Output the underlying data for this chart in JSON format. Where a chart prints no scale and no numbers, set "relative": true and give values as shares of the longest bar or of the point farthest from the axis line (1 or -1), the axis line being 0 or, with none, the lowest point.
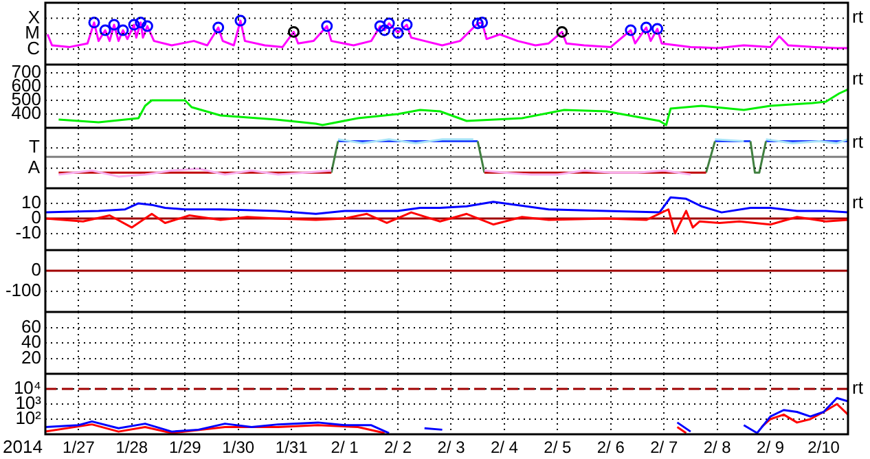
{
  "chart_data": [
    {
      "type": "line",
      "y2label": "rt",
      "grid": true,
      "tick_labels": "y",
      "xlim": [
        "2014-01-26T09:00",
        "2014-02-10T11:00"
      ],
      "xticks": [
        {
          "value": "2014-01-27",
          "label": null
        },
        {
          "value": "2014-01-28",
          "label": null
        },
        {
          "value": "2014-01-29",
          "label": null
        },
        {
          "value": "2014-01-30",
          "label": null
        },
        {
          "value": "2014-01-31",
          "label": null
        },
        {
          "value": "2014-02-01",
          "label": null
        },
        {
          "value": "2014-02-02",
          "label": null
        },
        {
          "value": "2014-02-03",
          "label": null
        },
        {
          "value": "2014-02-04",
          "label": null
        },
        {
          "value": "2014-02-05",
          "label": null
        },
        {
          "value": "2014-02-06",
          "label": null
        },
        {
          "value": "2014-02-07",
          "label": null
        },
        {
          "value": "2014-02-08",
          "label": null
        },
        {
          "value": "2014-02-09",
          "label": null
        },
        {
          "value": "2014-02-10",
          "label": null
        }
      ],
      "relative": true,
      "annotations": [
        "X",
        "M",
        "C"
      ],
      "series": [
        {
          "color": "#ff00ff",
          "x": [
            "2014-01-26T10:00",
            "2014-01-26T12:00",
            "2014-01-26T20:00",
            "2014-01-27T04:00",
            "2014-01-27T07:00",
            "2014-01-27T09:00",
            "2014-01-27T12:00",
            "2014-01-27T14:00",
            "2014-01-27T16:00",
            "2014-01-27T18:00",
            "2014-01-27T20:00",
            "2014-01-27T22:00",
            "2014-01-28T01:00",
            "2014-01-28T02:00",
            "2014-01-28T04:00",
            "2014-01-28T05:00",
            "2014-01-28T07:00",
            "2014-01-28T10:00",
            "2014-01-28T18:00",
            "2014-01-29T04:00",
            "2014-01-29T10:00",
            "2014-01-29T15:00",
            "2014-01-29T17:00",
            "2014-01-29T22:00",
            "2014-01-30T01:00",
            "2014-01-30T03:00",
            "2014-01-30T12:00",
            "2014-01-30T20:00",
            "2014-01-31T01:00",
            "2014-01-31T03:00",
            "2014-01-31T10:00",
            "2014-01-31T16:00",
            "2014-01-31T18:00",
            "2014-02-01T04:00",
            "2014-02-01T12:00",
            "2014-02-01T16:00",
            "2014-02-01T18:00",
            "2014-02-01T20:00",
            "2014-02-02T00:00",
            "2014-02-02T04:00",
            "2014-02-02T06:00",
            "2014-02-02T12:00",
            "2014-02-02T20:00",
            "2014-02-03T04:00",
            "2014-02-03T12:00",
            "2014-02-03T14:00",
            "2014-02-03T16:00",
            "2014-02-03T22:00",
            "2014-02-04T06:00",
            "2014-02-04T14:00",
            "2014-02-04T20:00",
            "2014-02-05T02:00",
            "2014-02-05T04:00",
            "2014-02-05T12:00",
            "2014-02-06T00:00",
            "2014-02-06T09:00",
            "2014-02-06T11:00",
            "2014-02-06T16:00",
            "2014-02-06T18:00",
            "2014-02-06T21:00",
            "2014-02-06T23:00",
            "2014-02-07T12:00",
            "2014-02-08T00:00",
            "2014-02-08T12:00",
            "2014-02-09T00:00",
            "2014-02-09T04:00",
            "2014-02-09T08:00",
            "2014-02-09T20:00",
            "2014-02-10T06:00",
            "2014-02-10T11:00"
          ],
          "values": [
            0.5,
            0.1,
            0.04,
            0.17,
            0.93,
            0.26,
            0.65,
            0.26,
            0.85,
            0.26,
            0.65,
            0.33,
            0.85,
            0.38,
            0.93,
            0.38,
            0.8,
            0.26,
            0.1,
            0.26,
            0.1,
            0.75,
            0.26,
            0.1,
            1,
            0.26,
            0.1,
            0.04,
            0.59,
            0.17,
            0.26,
            0.8,
            0.26,
            0.1,
            0.26,
            0.8,
            0.65,
            0.9,
            0.55,
            0.85,
            0.38,
            0.26,
            0.1,
            0.26,
            0.9,
            0.93,
            0.33,
            0.5,
            0.26,
            0.1,
            0.17,
            0.59,
            0.17,
            0.1,
            0.04,
            0.65,
            0.17,
            0.75,
            0.26,
            0.7,
            0.17,
            0.04,
            0,
            0.1,
            0.04,
            0.43,
            0.1,
            0.04,
            0,
            0
          ]
        },
        {
          "type": "scatter",
          "marker": "circle",
          "color": "#0000ff",
          "x": [
            "2014-01-27T07:00",
            "2014-01-27T12:00",
            "2014-01-27T16:00",
            "2014-01-27T20:00",
            "2014-01-28T01:00",
            "2014-01-28T04:00",
            "2014-01-28T07:00",
            "2014-01-29T15:00",
            "2014-01-30T01:00",
            "2014-01-31T16:00",
            "2014-02-01T16:00",
            "2014-02-01T18:00",
            "2014-02-01T20:00",
            "2014-02-02T00:00",
            "2014-02-02T04:00",
            "2014-02-03T12:00",
            "2014-02-03T14:00",
            "2014-02-06T09:00",
            "2014-02-06T16:00",
            "2014-02-06T21:00"
          ],
          "values": [
            0.93,
            0.65,
            0.85,
            0.65,
            0.85,
            0.93,
            0.8,
            0.75,
            1,
            0.8,
            0.8,
            0.65,
            0.9,
            0.55,
            0.85,
            0.9,
            0.93,
            0.65,
            0.75,
            0.7
          ]
        },
        {
          "type": "scatter",
          "marker": "circle",
          "color": "#000000",
          "x": [
            "2014-01-31T01:00",
            "2014-02-05T02:00"
          ],
          "values": [
            0.59,
            0.59
          ]
        }
      ]
    },
    {
      "type": "line",
      "y2label": "rt",
      "grid": true,
      "tick_labels": "y",
      "xlim": [
        "2014-01-26T09:00",
        "2014-02-10T11:00"
      ],
      "xticks": [
        {
          "value": "2014-01-27",
          "label": null
        },
        {
          "value": "2014-01-28",
          "label": null
        },
        {
          "value": "2014-01-29",
          "label": null
        },
        {
          "value": "2014-01-30",
          "label": null
        },
        {
          "value": "2014-01-31",
          "label": null
        },
        {
          "value": "2014-02-01",
          "label": null
        },
        {
          "value": "2014-02-02",
          "label": null
        },
        {
          "value": "2014-02-03",
          "label": null
        },
        {
          "value": "2014-02-04",
          "label": null
        },
        {
          "value": "2014-02-05",
          "label": null
        },
        {
          "value": "2014-02-06",
          "label": null
        },
        {
          "value": "2014-02-07",
          "label": null
        },
        {
          "value": "2014-02-08",
          "label": null
        },
        {
          "value": "2014-02-09",
          "label": null
        },
        {
          "value": "2014-02-10",
          "label": null
        }
      ],
      "ylim": [
        300,
        760
      ],
      "yticks": [
        400,
        500,
        600,
        700
      ],
      "series": [
        {
          "color": "#00ee00",
          "x": [
            "2014-01-26T15:00",
            "2014-01-27T09:00",
            "2014-01-28T03:00",
            "2014-01-28T06:00",
            "2014-01-28T09:00",
            "2014-01-29T00:00",
            "2014-01-29T03:00",
            "2014-01-29T16:00",
            "2014-01-30T17:00",
            "2014-01-31T11:00",
            "2014-01-31T14:00",
            "2014-02-01T06:00",
            "2014-02-02T00:00",
            "2014-02-02T10:00",
            "2014-02-02T19:00",
            "2014-02-03T07:00",
            "2014-02-04T08:00",
            "2014-02-05T03:00",
            "2014-02-05T22:00",
            "2014-02-06T22:00",
            "2014-02-07T01:00",
            "2014-02-07T03:00",
            "2014-02-07T17:00",
            "2014-02-08T12:00",
            "2014-02-09T00:00",
            "2014-02-09T19:00",
            "2014-02-10T01:00",
            "2014-02-10T07:00",
            "2014-02-10T11:00"
          ],
          "values": [
            360,
            340,
            370,
            460,
            500,
            500,
            450,
            390,
            360,
            330,
            320,
            370,
            400,
            430,
            420,
            350,
            370,
            430,
            420,
            350,
            320,
            440,
            460,
            430,
            460,
            480,
            490,
            550,
            580
          ]
        }
      ]
    },
    {
      "type": "line",
      "y2label": "rt",
      "grid": true,
      "tick_labels": "y",
      "xlim": [
        "2014-01-26T09:00",
        "2014-02-10T11:00"
      ],
      "xticks": [
        {
          "value": "2014-01-27",
          "label": null
        },
        {
          "value": "2014-01-28",
          "label": null
        },
        {
          "value": "2014-01-29",
          "label": null
        },
        {
          "value": "2014-01-30",
          "label": null
        },
        {
          "value": "2014-01-31",
          "label": null
        },
        {
          "value": "2014-02-01",
          "label": null
        },
        {
          "value": "2014-02-02",
          "label": null
        },
        {
          "value": "2014-02-03",
          "label": null
        },
        {
          "value": "2014-02-04",
          "label": null
        },
        {
          "value": "2014-02-05",
          "label": null
        },
        {
          "value": "2014-02-06",
          "label": null
        },
        {
          "value": "2014-02-07",
          "label": null
        },
        {
          "value": "2014-02-08",
          "label": null
        },
        {
          "value": "2014-02-09",
          "label": null
        },
        {
          "value": "2014-02-10",
          "label": null
        }
      ],
      "relative": true,
      "annotations": [
        "T",
        "A"
      ],
      "ref_lines": [
        {
          "axis": "y",
          "value": 0,
          "color": "#808080"
        }
      ],
      "series": [
        {
          "color": "#f8b0f0",
          "x": [
            "2014-01-26T15:00",
            "2014-01-27T06:00",
            "2014-01-27T18:00",
            "2014-01-28T06:00",
            "2014-01-28T18:00",
            "2014-01-29T06:00",
            "2014-01-29T18:00",
            "2014-01-30T06:00",
            "2014-01-30T18:00",
            "2014-01-31T06:00",
            "2014-01-31T18:00",
            "2014-02-02T00:00",
            "2014-02-03T15:00",
            "2014-02-04T00:00",
            "2014-02-04T12:00",
            "2014-02-05T00:00",
            "2014-02-05T12:00",
            "2014-02-06T00:00",
            "2014-02-06T12:00",
            "2014-02-07T00:00",
            "2014-02-07T12:00"
          ],
          "values": [
            -0.9,
            -0.7,
            -1,
            -0.9,
            -0.7,
            -0.6,
            -0.9,
            -0.7,
            -0.9,
            -0.8,
            -0.7,
            null,
            -0.7,
            -0.8,
            -0.9,
            -0.9,
            -0.7,
            -0.8,
            -0.8,
            -0.7,
            -0.9
          ]
        },
        {
          "color": "#a8e4f8",
          "x": [
            "2014-01-31T21:00",
            "2014-02-01T08:00",
            "2014-02-01T20:00",
            "2014-02-02T08:00",
            "2014-02-02T20:00",
            "2014-02-03T10:00",
            "2014-02-05T00:00",
            "2014-02-07T23:00",
            "2014-02-08T12:00",
            "2014-02-08T18:00",
            "2014-02-08T22:00",
            "2014-02-09T10:00",
            "2014-02-09T22:00",
            "2014-02-10T06:00",
            "2014-02-10T11:00"
          ],
          "values": [
            0.9,
            0.7,
            0.9,
            0.7,
            0.9,
            0.9,
            null,
            0.9,
            0.8,
            null,
            0.9,
            0.7,
            0.8,
            0.7,
            0.9
          ]
        },
        {
          "color": "#c00000",
          "x": [
            "2014-01-26T15:00",
            "2014-01-31T18:00",
            "2014-02-02T00:00",
            "2014-02-03T15:00",
            "2014-02-07T19:00"
          ],
          "values": [
            -0.8,
            -0.8,
            null,
            -0.8,
            -0.8
          ]
        },
        {
          "color": "#408040",
          "x": [
            "2014-01-31T18:00",
            "2014-01-31T21:00",
            "2014-02-02T00:00",
            "2014-02-03T12:00",
            "2014-02-03T15:00",
            "2014-02-05T00:00",
            "2014-02-07T19:00",
            "2014-02-07T23:00",
            "2014-02-08T02:00",
            "2014-02-08T15:00",
            "2014-02-08T17:00",
            "2014-02-08T19:00",
            "2014-02-08T22:00"
          ],
          "values": [
            -0.8,
            0.8,
            null,
            0.8,
            -0.8,
            null,
            -0.8,
            0.8,
            null,
            0.8,
            -0.8,
            -0.8,
            0.8
          ]
        },
        {
          "color": "#2040ff",
          "x": [
            "2014-01-31T21:00",
            "2014-02-03T12:00",
            "2014-02-05T00:00",
            "2014-02-07T23:00",
            "2014-02-08T15:00",
            "2014-02-08T18:00",
            "2014-02-08T22:00",
            "2014-02-10T11:00"
          ],
          "values": [
            0.8,
            0.8,
            null,
            0.8,
            0.8,
            null,
            0.8,
            0.8
          ]
        }
      ]
    },
    {
      "type": "line",
      "y2label": "rt",
      "grid": true,
      "tick_labels": "y",
      "xlim": [
        "2014-01-26T09:00",
        "2014-02-10T11:00"
      ],
      "xticks": [
        {
          "value": "2014-01-27",
          "label": null
        },
        {
          "value": "2014-01-28",
          "label": null
        },
        {
          "value": "2014-01-29",
          "label": null
        },
        {
          "value": "2014-01-30",
          "label": null
        },
        {
          "value": "2014-01-31",
          "label": null
        },
        {
          "value": "2014-02-01",
          "label": null
        },
        {
          "value": "2014-02-02",
          "label": null
        },
        {
          "value": "2014-02-03",
          "label": null
        },
        {
          "value": "2014-02-04",
          "label": null
        },
        {
          "value": "2014-02-05",
          "label": null
        },
        {
          "value": "2014-02-06",
          "label": null
        },
        {
          "value": "2014-02-07",
          "label": null
        },
        {
          "value": "2014-02-08",
          "label": null
        },
        {
          "value": "2014-02-09",
          "label": null
        },
        {
          "value": "2014-02-10",
          "label": null
        }
      ],
      "ylim": [
        -21,
        20
      ],
      "yticks": [
        10,
        0,
        -10
      ],
      "ref_lines": [
        {
          "axis": "y",
          "value": 0,
          "color": "#a00000"
        }
      ],
      "series": [
        {
          "color": "#ff0000",
          "x": [
            "2014-01-26T09:00",
            "2014-01-27T02:00",
            "2014-01-27T14:00",
            "2014-01-28T00:00",
            "2014-01-28T09:00",
            "2014-01-28T15:00",
            "2014-01-29T02:00",
            "2014-01-29T16:00",
            "2014-01-30T04:00",
            "2014-01-30T17:00",
            "2014-01-31T11:00",
            "2014-02-01T00:00",
            "2014-02-01T10:00",
            "2014-02-01T19:00",
            "2014-02-02T06:00",
            "2014-02-02T19:00",
            "2014-02-03T07:00",
            "2014-02-03T19:00",
            "2014-02-04T08:00",
            "2014-02-04T20:00",
            "2014-02-05T22:00",
            "2014-02-06T16:00",
            "2014-02-07T02:00",
            "2014-02-07T05:00",
            "2014-02-07T10:00",
            "2014-02-07T13:00",
            "2014-02-07T16:00",
            "2014-02-08T01:00",
            "2014-02-08T10:00",
            "2014-02-09T00:00",
            "2014-02-09T12:00",
            "2014-02-10T01:00",
            "2014-02-10T11:00"
          ],
          "values": [
            0,
            -2,
            2,
            -6,
            3,
            -3,
            2,
            -1,
            1,
            0,
            -1,
            0,
            3,
            -3,
            4,
            -2,
            3,
            -4,
            1,
            -1,
            0,
            -1,
            6,
            -10,
            5,
            -6,
            -2,
            -3,
            -2,
            -4,
            1,
            -2,
            -1
          ]
        },
        {
          "color": "#0000ff",
          "x": [
            "2014-01-26T09:00",
            "2014-01-27T09:00",
            "2014-01-27T21:00",
            "2014-01-28T03:00",
            "2014-01-28T09:00",
            "2014-01-28T15:00",
            "2014-01-29T00:00",
            "2014-01-29T16:00",
            "2014-01-30T17:00",
            "2014-01-31T11:00",
            "2014-02-01T00:00",
            "2014-02-02T00:00",
            "2014-02-02T10:00",
            "2014-02-02T19:00",
            "2014-02-03T07:00",
            "2014-02-03T19:00",
            "2014-02-04T20:00",
            "2014-02-05T22:00",
            "2014-02-06T22:00",
            "2014-02-07T03:00",
            "2014-02-07T10:00",
            "2014-02-07T17:00",
            "2014-02-08T02:00",
            "2014-02-08T15:00",
            "2014-02-09T00:00",
            "2014-02-09T12:00",
            "2014-02-10T01:00",
            "2014-02-10T11:00"
          ],
          "values": [
            4,
            5,
            6,
            10,
            9,
            7,
            6,
            6,
            5,
            3,
            5,
            5,
            7,
            7,
            8,
            11,
            6,
            5,
            4,
            14,
            13,
            8,
            4,
            7,
            7,
            5,
            5,
            4
          ]
        }
      ]
    },
    {
      "type": "line",
      "grid": true,
      "tick_labels": "y",
      "xlim": [
        "2014-01-26T09:00",
        "2014-02-10T11:00"
      ],
      "xticks": [
        {
          "value": "2014-01-27",
          "label": null
        },
        {
          "value": "2014-01-28",
          "label": null
        },
        {
          "value": "2014-01-29",
          "label": null
        },
        {
          "value": "2014-01-30",
          "label": null
        },
        {
          "value": "2014-01-31",
          "label": null
        },
        {
          "value": "2014-02-01",
          "label": null
        },
        {
          "value": "2014-02-02",
          "label": null
        },
        {
          "value": "2014-02-03",
          "label": null
        },
        {
          "value": "2014-02-04",
          "label": null
        },
        {
          "value": "2014-02-05",
          "label": null
        },
        {
          "value": "2014-02-06",
          "label": null
        },
        {
          "value": "2014-02-07",
          "label": null
        },
        {
          "value": "2014-02-08",
          "label": null
        },
        {
          "value": "2014-02-09",
          "label": null
        },
        {
          "value": "2014-02-10",
          "label": null
        }
      ],
      "ylim": [
        -200,
        100
      ],
      "yticks": [
        0,
        -100
      ],
      "ref_lines": [
        {
          "axis": "y",
          "value": 0,
          "color": "#a00000"
        }
      ]
    },
    {
      "type": "line",
      "grid": true,
      "tick_labels": "y",
      "xlim": [
        "2014-01-26T09:00",
        "2014-02-10T11:00"
      ],
      "xticks": [
        {
          "value": "2014-01-27",
          "label": null
        },
        {
          "value": "2014-01-28",
          "label": null
        },
        {
          "value": "2014-01-29",
          "label": null
        },
        {
          "value": "2014-01-30",
          "label": null
        },
        {
          "value": "2014-01-31",
          "label": null
        },
        {
          "value": "2014-02-01",
          "label": null
        },
        {
          "value": "2014-02-02",
          "label": null
        },
        {
          "value": "2014-02-03",
          "label": null
        },
        {
          "value": "2014-02-04",
          "label": null
        },
        {
          "value": "2014-02-05",
          "label": null
        },
        {
          "value": "2014-02-06",
          "label": null
        },
        {
          "value": "2014-02-07",
          "label": null
        },
        {
          "value": "2014-02-08",
          "label": null
        },
        {
          "value": "2014-02-09",
          "label": null
        },
        {
          "value": "2014-02-10",
          "label": null
        }
      ],
      "ylim": [
        0,
        80
      ],
      "yticks": [
        60,
        40,
        20
      ]
    },
    {
      "type": "line",
      "log": "y",
      "y2label": "rt",
      "xlabel": "2014",
      "grid": true,
      "xlim": [
        "2014-01-26T09:00",
        "2014-02-10T11:00"
      ],
      "xticks": [
        {
          "value": "2014-01-27",
          "label": "1/27"
        },
        {
          "value": "2014-01-28",
          "label": "1/28"
        },
        {
          "value": "2014-01-29",
          "label": "1/29"
        },
        {
          "value": "2014-01-30",
          "label": "1/30"
        },
        {
          "value": "2014-01-31",
          "label": "1/31"
        },
        {
          "value": "2014-02-01",
          "label": "2/ 1"
        },
        {
          "value": "2014-02-02",
          "label": "2/ 2"
        },
        {
          "value": "2014-02-03",
          "label": "2/ 3"
        },
        {
          "value": "2014-02-04",
          "label": "2/ 4"
        },
        {
          "value": "2014-02-05",
          "label": "2/ 5"
        },
        {
          "value": "2014-02-06",
          "label": "2/ 6"
        },
        {
          "value": "2014-02-07",
          "label": "2/ 7"
        },
        {
          "value": "2014-02-08",
          "label": "2/ 8"
        },
        {
          "value": "2014-02-09",
          "label": "2/ 9"
        },
        {
          "value": "2014-02-10",
          "label": "2/10"
        }
      ],
      "ylim": [
        10,
        100000
      ],
      "yticks": [
        {
          "value": 10000,
          "label": "10⁴"
        },
        {
          "value": 1000,
          "label": "10³"
        },
        {
          "value": 100,
          "label": "10²"
        }
      ],
      "ref_lines": [
        {
          "axis": "y",
          "value": 10000,
          "color": "#a00000",
          "line_style": "dashed"
        }
      ],
      "series": [
        {
          "color": "#0000ff",
          "x": [
            "2014-01-26T09:00",
            "2014-01-27T00:00",
            "2014-01-27T06:00",
            "2014-01-27T18:00",
            "2014-01-28T06:00",
            "2014-01-28T18:00",
            "2014-01-29T06:00",
            "2014-01-29T18:00",
            "2014-01-30T06:00",
            "2014-01-30T18:00",
            "2014-01-31T12:00",
            "2014-02-01T00:00",
            "2014-02-01T12:00",
            "2014-02-01T20:00",
            "2014-02-02T03:00",
            "2014-02-02T12:00",
            "2014-02-02T20:00",
            "2014-02-05T00:00",
            "2014-02-07T06:00",
            "2014-02-07T12:00",
            "2014-02-08T00:00",
            "2014-02-08T12:00",
            "2014-02-08T18:00",
            "2014-02-09T00:00",
            "2014-02-09T06:00",
            "2014-02-09T12:00",
            "2014-02-09T18:00",
            "2014-02-10T00:00",
            "2014-02-10T06:00",
            "2014-02-10T11:00"
          ],
          "values": [
            30,
            40,
            70,
            25,
            50,
            15,
            20,
            50,
            30,
            45,
            60,
            40,
            40,
            12,
            null,
            25,
            20,
            null,
            60,
            15,
            null,
            40,
            12,
            150,
            400,
            300,
            150,
            300,
            2500,
            1500
          ]
        },
        {
          "color": "#ff0000",
          "x": [
            "2014-01-26T09:00",
            "2014-01-27T06:00",
            "2014-01-27T18:00",
            "2014-01-28T06:00",
            "2014-01-28T18:00",
            "2014-01-29T18:00",
            "2014-01-30T18:00",
            "2014-01-31T12:00",
            "2014-02-01T06:00",
            "2014-02-01T18:00",
            "2014-02-04T00:00",
            "2014-02-07T06:00",
            "2014-02-07T10:00",
            "2014-02-08T00:00",
            "2014-02-08T20:00",
            "2014-02-09T00:00",
            "2014-02-09T06:00",
            "2014-02-09T12:00",
            "2014-02-09T18:00",
            "2014-02-10T00:00",
            "2014-02-10T06:00",
            "2014-02-10T11:00"
          ],
          "values": [
            15,
            45,
            15,
            30,
            12,
            30,
            30,
            40,
            30,
            12,
            null,
            30,
            12,
            null,
            30,
            100,
            200,
            60,
            100,
            300,
            1000,
            200
          ]
        }
      ]
    }
  ]
}
